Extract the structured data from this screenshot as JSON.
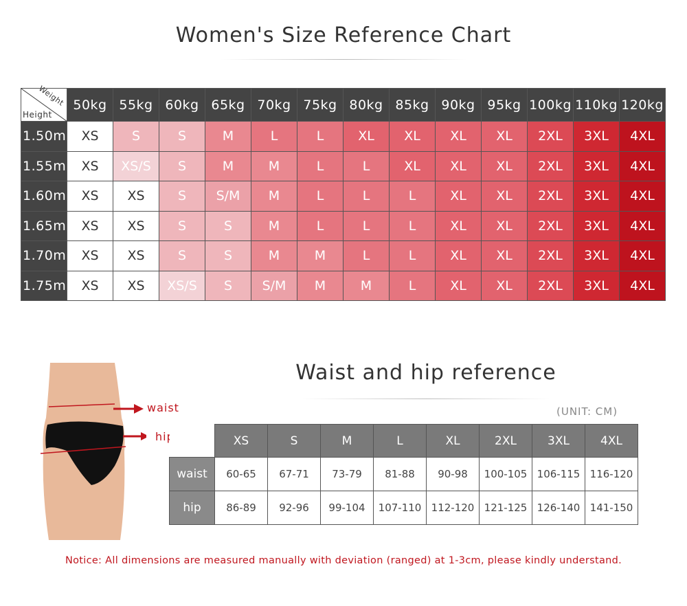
{
  "title": "Women's Size Reference Chart",
  "size_chart": {
    "corner_weight": "Weight",
    "corner_height": "Height",
    "weights": [
      "50kg",
      "55kg",
      "60kg",
      "65kg",
      "70kg",
      "75kg",
      "80kg",
      "85kg",
      "90kg",
      "95kg",
      "100kg",
      "110kg",
      "120kg"
    ],
    "rows": [
      {
        "height": "1.50m",
        "sizes": [
          "XS",
          "S",
          "S",
          "M",
          "L",
          "L",
          "XL",
          "XL",
          "XL",
          "XL",
          "2XL",
          "3XL",
          "4XL"
        ]
      },
      {
        "height": "1.55m",
        "sizes": [
          "XS",
          "XS/S",
          "S",
          "M",
          "M",
          "L",
          "L",
          "XL",
          "XL",
          "XL",
          "2XL",
          "3XL",
          "4XL"
        ]
      },
      {
        "height": "1.60m",
        "sizes": [
          "XS",
          "XS",
          "S",
          "S/M",
          "M",
          "L",
          "L",
          "L",
          "XL",
          "XL",
          "2XL",
          "3XL",
          "4XL"
        ]
      },
      {
        "height": "1.65m",
        "sizes": [
          "XS",
          "XS",
          "S",
          "S",
          "M",
          "L",
          "L",
          "L",
          "XL",
          "XL",
          "2XL",
          "3XL",
          "4XL"
        ]
      },
      {
        "height": "1.70m",
        "sizes": [
          "XS",
          "XS",
          "S",
          "S",
          "M",
          "M",
          "L",
          "L",
          "XL",
          "XL",
          "2XL",
          "3XL",
          "4XL"
        ]
      },
      {
        "height": "1.75m",
        "sizes": [
          "XS",
          "XS",
          "XS/S",
          "S",
          "S/M",
          "M",
          "M",
          "L",
          "XL",
          "XL",
          "2XL",
          "3XL",
          "4XL"
        ]
      }
    ],
    "size_colors": {
      "XS": "#ffffff",
      "XS/S": "#f3d2d6",
      "S": "#efb6bb",
      "S/M": "#eba1a8",
      "M": "#e98890",
      "L": "#e5757f",
      "XL": "#e2636e",
      "2XL": "#dc4a55",
      "3XL": "#cf2832",
      "4XL": "#be131e"
    }
  },
  "measure": {
    "title": "Waist and hip reference",
    "unit": "(UNIT: CM)",
    "sizes": [
      "XS",
      "S",
      "M",
      "L",
      "XL",
      "2XL",
      "3XL",
      "4XL"
    ],
    "rows": [
      {
        "label": "waist",
        "values": [
          "60-65",
          "67-71",
          "73-79",
          "81-88",
          "90-98",
          "100-105",
          "106-115",
          "116-120"
        ]
      },
      {
        "label": "hip",
        "values": [
          "86-89",
          "92-96",
          "99-104",
          "107-110",
          "112-120",
          "121-125",
          "126-140",
          "141-150"
        ]
      }
    ],
    "photo_labels": {
      "waist": "waist",
      "hip": "hip"
    }
  },
  "notice": "Notice:  All dimensions are measured manually with deviation (ranged) at 1-3cm, please kindly understand.",
  "accent_color": "#c0161e"
}
